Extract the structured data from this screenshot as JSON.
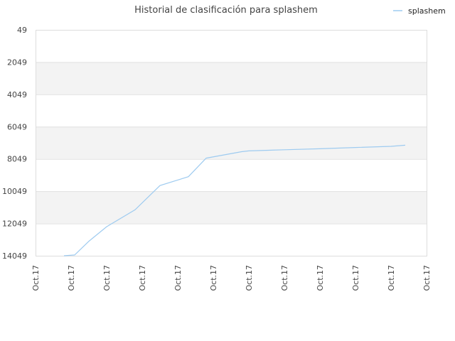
{
  "chart_data": {
    "type": "line",
    "title": "Historial de clasificación para splashem",
    "xlabel": "",
    "ylabel": "",
    "y_reversed": true,
    "ylim": [
      49,
      14049
    ],
    "y_ticks": [
      "49",
      "2049",
      "4049",
      "6049",
      "8049",
      "10049",
      "12049",
      "14049"
    ],
    "x_ticks": [
      "Oct.17",
      "Oct.17",
      "Oct.17",
      "Oct.17",
      "Oct.17",
      "Oct.17",
      "Oct.17",
      "Oct.17",
      "Oct.17",
      "Oct.17",
      "Oct.17",
      "Oct.17"
    ],
    "grid": "horizontal bands",
    "legend_position": "top-right",
    "series": [
      {
        "name": "splashem",
        "color": "#9ecbf0",
        "x": [
          0.8,
          1.1,
          1.5,
          2.0,
          2.8,
          3.5,
          4.3,
          4.8,
          5.8,
          6.0,
          7.0,
          8.0,
          9.0,
          10.0,
          10.4
        ],
        "values": [
          14049,
          14000,
          13150,
          12250,
          11200,
          9700,
          9150,
          8000,
          7600,
          7550,
          7480,
          7420,
          7340,
          7270,
          7200
        ]
      }
    ]
  }
}
